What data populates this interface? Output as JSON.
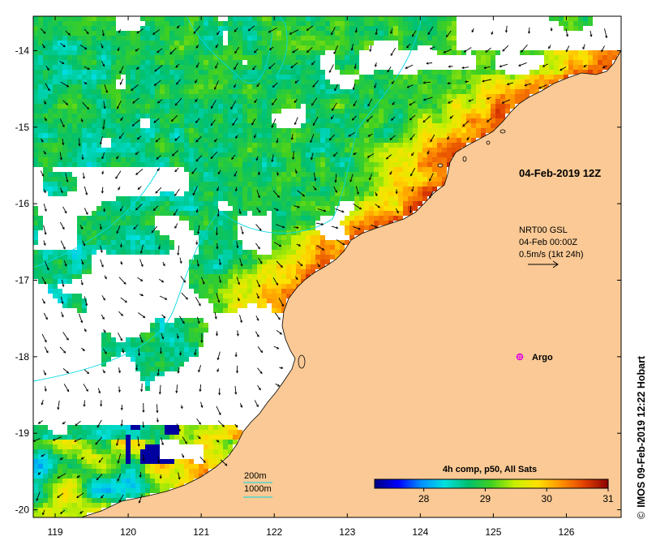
{
  "map": {
    "lon_range": [
      118.7,
      126.75
    ],
    "lat_range": [
      -20.1,
      -13.55
    ],
    "x_ticks": [
      "119",
      "120",
      "121",
      "122",
      "123",
      "124",
      "125",
      "126"
    ],
    "y_ticks": [
      "-14",
      "-15",
      "-16",
      "-17",
      "-18",
      "-19",
      "-20"
    ],
    "land_color": "#FAC995",
    "no_data_color": "#FFFFFF"
  },
  "labels": {
    "sst_time": "04-Feb-2019 12Z",
    "current_source": "NRT00 GSL",
    "current_time": "04-Feb 00:00Z",
    "scale_note": "0.5m/s (1kt 24h)",
    "argo_label": "Argo",
    "isobath_200": "200m",
    "isobath_1000": "1000m",
    "isobath_color": "#00D8E8",
    "credit": "IMOS 09-Feb-2019 12:22 Hobart",
    "credit_symbol": "©"
  },
  "colorbar": {
    "title": "4h comp, p50, All Sats",
    "min": 27.2,
    "max": 31.0,
    "ticks": [
      "28",
      "29",
      "30",
      "31"
    ],
    "stops": [
      "#00007F",
      "#0000FF",
      "#0090FF",
      "#00E0E0",
      "#00C070",
      "#40D020",
      "#C8F000",
      "#FFE000",
      "#FF9000",
      "#E04000",
      "#8A0000"
    ]
  }
}
